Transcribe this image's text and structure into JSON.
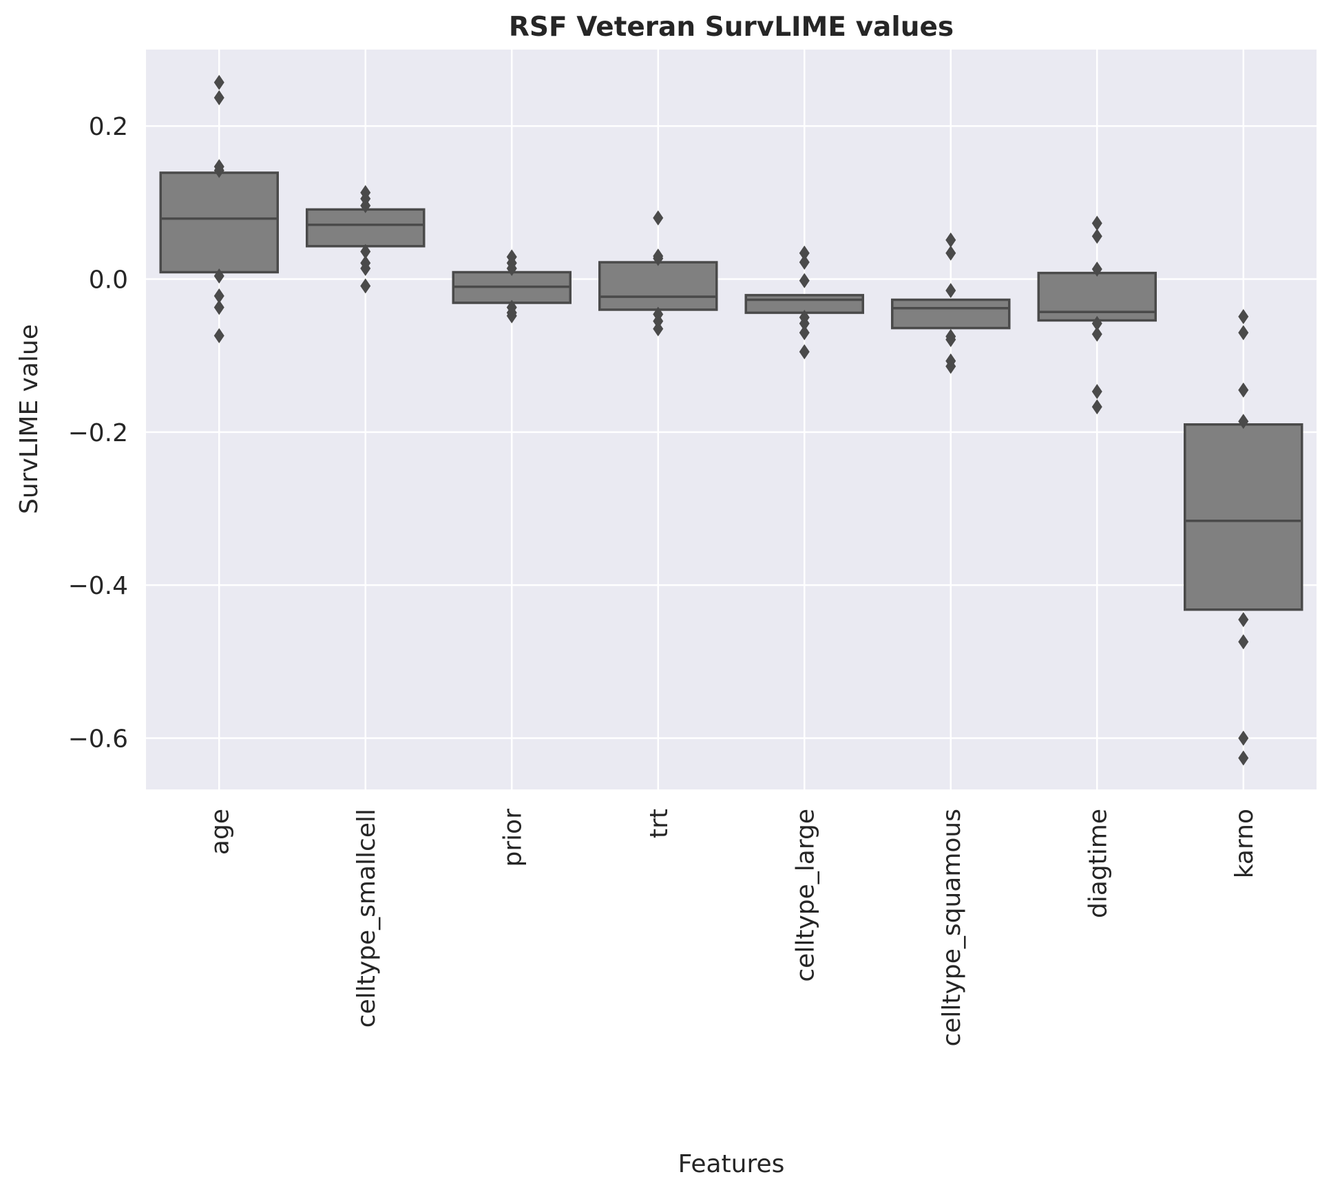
{
  "chart_data": {
    "type": "boxplot",
    "title": "RSF Veteran SurvLIME values",
    "xlabel": "Features",
    "ylabel": "SurvLIME value",
    "ylim": [
      -0.667,
      0.3
    ],
    "yticks": [
      0.2,
      0.0,
      -0.2,
      -0.4,
      -0.6
    ],
    "ytick_labels": [
      "0.2",
      "0.0",
      "−0.2",
      "−0.4",
      "−0.6"
    ],
    "grid": true,
    "colors": {
      "background": "#eaeaf2",
      "grid": "#ffffff",
      "box_fill": "#808080",
      "box_line": "#4a4a4a",
      "text": "#262626"
    },
    "categories": [
      "age",
      "celltype_smallcell",
      "prior",
      "trt",
      "celltype_large",
      "celltype_squamous",
      "diagtime",
      "karno"
    ],
    "boxes": [
      {
        "q1": 0.009,
        "median": 0.079,
        "q3": 0.139,
        "whislo": 0.009,
        "whishi": 0.139,
        "fliers": [
          0.257,
          0.237,
          0.147,
          0.142,
          0.004,
          -0.022,
          -0.037,
          -0.074
        ]
      },
      {
        "q1": 0.043,
        "median": 0.071,
        "q3": 0.091,
        "whislo": 0.043,
        "whishi": 0.091,
        "fliers": [
          0.113,
          0.105,
          0.096,
          0.036,
          0.021,
          0.014,
          -0.009
        ]
      },
      {
        "q1": -0.031,
        "median": -0.01,
        "q3": 0.009,
        "whislo": -0.031,
        "whishi": 0.009,
        "fliers": [
          0.029,
          0.021,
          0.014,
          -0.037,
          -0.044,
          -0.048
        ]
      },
      {
        "q1": -0.04,
        "median": -0.023,
        "q3": 0.022,
        "whislo": -0.04,
        "whishi": 0.022,
        "fliers": [
          0.08,
          0.03,
          0.027,
          -0.046,
          -0.055,
          -0.065
        ]
      },
      {
        "q1": -0.044,
        "median": -0.027,
        "q3": -0.021,
        "whislo": -0.044,
        "whishi": -0.021,
        "fliers": [
          0.034,
          0.022,
          -0.002,
          -0.05,
          -0.058,
          -0.07,
          -0.095
        ]
      },
      {
        "q1": -0.064,
        "median": -0.038,
        "q3": -0.027,
        "whislo": -0.064,
        "whishi": -0.027,
        "fliers": [
          0.051,
          0.034,
          -0.015,
          -0.075,
          -0.079,
          -0.107,
          -0.114
        ]
      },
      {
        "q1": -0.054,
        "median": -0.043,
        "q3": 0.008,
        "whislo": -0.054,
        "whishi": 0.008,
        "fliers": [
          0.073,
          0.056,
          0.013,
          -0.058,
          -0.072,
          -0.147,
          -0.167
        ]
      },
      {
        "q1": -0.432,
        "median": -0.316,
        "q3": -0.19,
        "whislo": -0.432,
        "whishi": -0.19,
        "fliers": [
          -0.049,
          -0.07,
          -0.145,
          -0.186,
          -0.445,
          -0.474,
          -0.6,
          -0.626
        ]
      }
    ]
  }
}
